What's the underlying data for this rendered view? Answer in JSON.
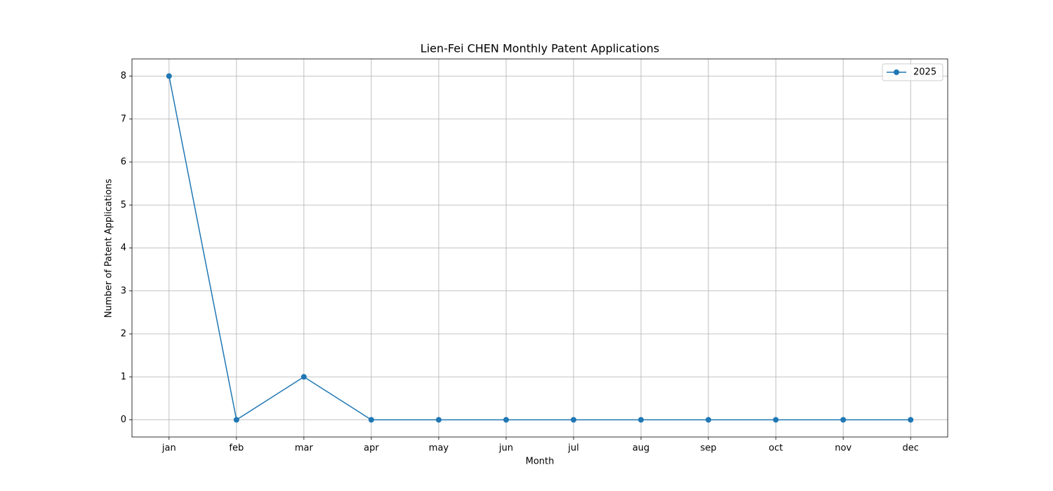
{
  "chart_data": {
    "type": "line",
    "title": "Lien-Fei CHEN Monthly Patent Applications",
    "xlabel": "Month",
    "ylabel": "Number of Patent Applications",
    "categories": [
      "jan",
      "feb",
      "mar",
      "apr",
      "may",
      "jun",
      "jul",
      "aug",
      "sep",
      "oct",
      "nov",
      "dec"
    ],
    "series": [
      {
        "name": "2025",
        "color": "#1f77b4",
        "values": [
          8,
          0,
          1,
          0,
          0,
          0,
          0,
          0,
          0,
          0,
          0,
          0
        ]
      }
    ],
    "ylim": [
      -0.4,
      8.4
    ],
    "yticks": [
      0,
      1,
      2,
      3,
      4,
      5,
      6,
      7,
      8
    ],
    "grid": true,
    "legend": "upper right"
  }
}
